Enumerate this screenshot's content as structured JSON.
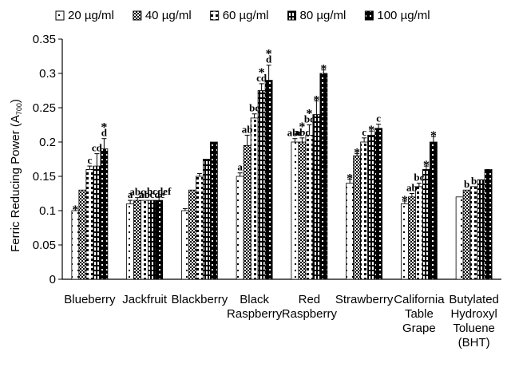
{
  "chart_data": {
    "type": "bar",
    "ylabel": "Ferric Reducing Power (A",
    "ylabel_sub": "700",
    "ylabel_close": ")",
    "ylim": [
      0,
      0.35
    ],
    "yticks": [
      "0",
      "0.05",
      "0.1",
      "0.15",
      "0.2",
      "0.25",
      "0.3",
      "0.35"
    ],
    "categories": [
      [
        "Blueberry"
      ],
      [
        "Jackfruit"
      ],
      [
        "Blackberry"
      ],
      [
        "Black",
        "Raspberry"
      ],
      [
        "Red",
        "Raspberry"
      ],
      [
        "Strawberry"
      ],
      [
        "California",
        "Table",
        "Grape"
      ],
      [
        "Butylated",
        "Hydroxyl",
        "Toluene",
        "(BHT)"
      ]
    ],
    "series": [
      {
        "name": "20 µg/ml",
        "values": [
          0.1,
          0.11,
          0.1,
          0.15,
          0.2,
          0.14,
          0.11,
          0.12
        ],
        "errors": [
          0,
          0.005,
          0.003,
          0.005,
          0.005,
          0.006,
          0.004,
          0
        ]
      },
      {
        "name": "40 µg/ml",
        "values": [
          0.13,
          0.115,
          0.13,
          0.195,
          0.2,
          0.18,
          0.12,
          0.13
        ],
        "errors": [
          0,
          0.004,
          0,
          0.015,
          0.006,
          0.003,
          0.005,
          0
        ]
      },
      {
        "name": "60 µg/ml",
        "values": [
          0.16,
          0.115,
          0.15,
          0.235,
          0.21,
          0.2,
          0.135,
          0.135
        ],
        "errors": [
          0.005,
          0,
          0.004,
          0.006,
          0.015,
          0.006,
          0.005,
          0
        ]
      },
      {
        "name": "80 µg/ml",
        "values": [
          0.165,
          0.115,
          0.175,
          0.275,
          0.24,
          0.21,
          0.16,
          0.145
        ],
        "errors": [
          0.018,
          0,
          0,
          0.01,
          0.02,
          0.006,
          0.005,
          0
        ]
      },
      {
        "name": "100 µg/ml",
        "values": [
          0.19,
          0.115,
          0.2,
          0.29,
          0.3,
          0.22,
          0.2,
          0.16
        ],
        "errors": [
          0.015,
          0.005,
          0,
          0.022,
          0.005,
          0.006,
          0.008,
          0
        ]
      }
    ],
    "annotations": [
      {
        "group": 0,
        "series": 0,
        "text": "*"
      },
      {
        "group": 0,
        "series": 2,
        "text": "c"
      },
      {
        "group": 0,
        "series": 3,
        "text": "cd"
      },
      {
        "group": 0,
        "series": 4,
        "text": "d"
      },
      {
        "group": 0,
        "series": 4,
        "text": "*"
      },
      {
        "group": 1,
        "series": 0,
        "text": "a"
      },
      {
        "group": 1,
        "series": 1,
        "text": "abc"
      },
      {
        "group": 1,
        "series": 2,
        "text": "ab"
      },
      {
        "group": 1,
        "series": 3,
        "text": "abcde"
      },
      {
        "group": 1,
        "series": 4,
        "text": "bcdef"
      },
      {
        "group": 3,
        "series": 0,
        "text": "a"
      },
      {
        "group": 3,
        "series": 1,
        "text": "ab"
      },
      {
        "group": 3,
        "series": 2,
        "text": "bc"
      },
      {
        "group": 3,
        "series": 3,
        "text": "cd"
      },
      {
        "group": 3,
        "series": 3,
        "text": "*"
      },
      {
        "group": 3,
        "series": 4,
        "text": "d"
      },
      {
        "group": 3,
        "series": 4,
        "text": "*"
      },
      {
        "group": 4,
        "series": 0,
        "text": "abc"
      },
      {
        "group": 4,
        "series": 1,
        "text": "abc"
      },
      {
        "group": 4,
        "series": 1,
        "text": "*"
      },
      {
        "group": 4,
        "series": 2,
        "text": "bc"
      },
      {
        "group": 4,
        "series": 2,
        "text": "*"
      },
      {
        "group": 4,
        "series": 3,
        "text": "*"
      },
      {
        "group": 4,
        "series": 4,
        "text": "*"
      },
      {
        "group": 5,
        "series": 0,
        "text": "*"
      },
      {
        "group": 5,
        "series": 1,
        "text": "*"
      },
      {
        "group": 5,
        "series": 2,
        "text": "c"
      },
      {
        "group": 5,
        "series": 3,
        "text": "*"
      },
      {
        "group": 5,
        "series": 4,
        "text": "c"
      },
      {
        "group": 6,
        "series": 0,
        "text": "*"
      },
      {
        "group": 6,
        "series": 1,
        "text": "ab"
      },
      {
        "group": 6,
        "series": 2,
        "text": "bc"
      },
      {
        "group": 6,
        "series": 3,
        "text": "*"
      },
      {
        "group": 6,
        "series": 4,
        "text": "*"
      },
      {
        "group": 7,
        "series": 1,
        "text": "b"
      },
      {
        "group": 7,
        "series": 2,
        "text": "b"
      }
    ],
    "legend_position": "top",
    "grid": false
  }
}
